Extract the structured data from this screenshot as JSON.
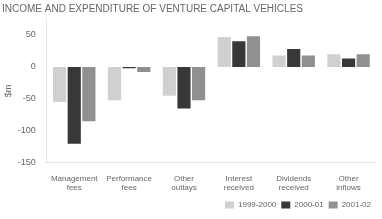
{
  "chart_data": {
    "type": "bar",
    "title": "INCOME AND EXPENDITURE OF VENTURE CAPITAL VEHICLES",
    "ylabel": "$m",
    "categories": [
      "Management\nfees",
      "Performance\nfees",
      "Other\noutlays",
      "Interest\nreceived",
      "Dividends\nreceived",
      "Other\ninflows"
    ],
    "series": [
      {
        "name": "1999-2000",
        "color": "#d0d0d0",
        "values": [
          -55,
          -52,
          -45,
          47,
          18,
          20
        ]
      },
      {
        "name": "2000-01",
        "color": "#383838",
        "values": [
          -120,
          -2,
          -65,
          40,
          28,
          13
        ]
      },
      {
        "name": "2001-02",
        "color": "#909090",
        "values": [
          -85,
          -8,
          -52,
          48,
          18,
          20
        ]
      }
    ],
    "ylim": [
      -150,
      75
    ],
    "yticks": [
      -150,
      -100,
      -50,
      0,
      50
    ],
    "grid": false,
    "legend": "lower right"
  }
}
